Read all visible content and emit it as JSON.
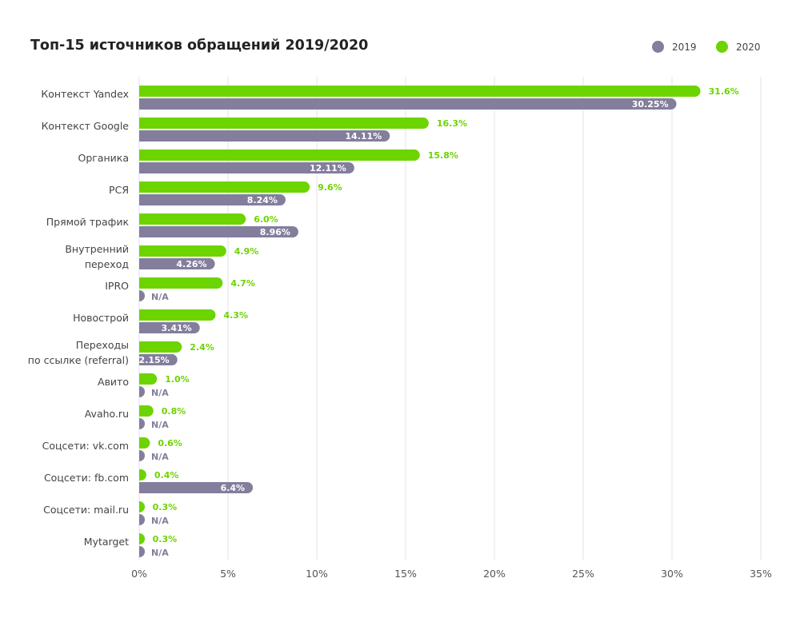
{
  "title": "Топ-15 источников обращений 2019/2020",
  "legend": [
    {
      "label": "2019",
      "color": "#837e9c"
    },
    {
      "label": "2020",
      "color": "#6cd400"
    }
  ],
  "chart_data": {
    "type": "bar",
    "orientation": "horizontal",
    "title": "Топ-15 источников обращений 2019/2020",
    "xlim": [
      0,
      35
    ],
    "x_ticks": [
      "0%",
      "5%",
      "10%",
      "15%",
      "20%",
      "25%",
      "30%",
      "35%"
    ],
    "grid": true,
    "legend_position": "top-right",
    "categories": [
      [
        "Контекст Yandex"
      ],
      [
        "Контекст Google"
      ],
      [
        "Органика"
      ],
      [
        "РСЯ"
      ],
      [
        "Прямой трафик"
      ],
      [
        "Внутренний",
        "переход"
      ],
      [
        "IPRO"
      ],
      [
        "Новострой"
      ],
      [
        "Переходы",
        "по ссылке (referral)"
      ],
      [
        "Авито"
      ],
      [
        "Avaho.ru"
      ],
      [
        "Соцсети: vk.com"
      ],
      [
        "Соцсети: fb.com"
      ],
      [
        "Соцсети: mail.ru"
      ],
      [
        "Mytarget"
      ]
    ],
    "series": [
      {
        "name": "2020",
        "color": "#6cd400",
        "values": [
          31.6,
          16.3,
          15.8,
          9.6,
          6.0,
          4.9,
          4.7,
          4.3,
          2.4,
          1.0,
          0.8,
          0.6,
          0.4,
          0.3,
          0.3
        ],
        "labels": [
          "31.6%",
          "16.3%",
          "15.8%",
          "9.6%",
          "6.0%",
          "4.9%",
          "4.7%",
          "4.3%",
          "2.4%",
          "1.0%",
          "0.8%",
          "0.6%",
          "0.4%",
          "0.3%",
          "0.3%"
        ]
      },
      {
        "name": "2019",
        "color": "#837e9c",
        "values": [
          30.25,
          14.11,
          12.11,
          8.24,
          8.96,
          4.26,
          null,
          3.41,
          2.15,
          null,
          null,
          null,
          6.4,
          null,
          null
        ],
        "labels": [
          "30.25%",
          "14.11%",
          "12.11%",
          "8.24%",
          "8.96%",
          "4.26%",
          "N/A",
          "3.41%",
          "2.15%",
          "N/A",
          "N/A",
          "N/A",
          "6.4%",
          "N/A",
          "N/A"
        ]
      }
    ]
  }
}
